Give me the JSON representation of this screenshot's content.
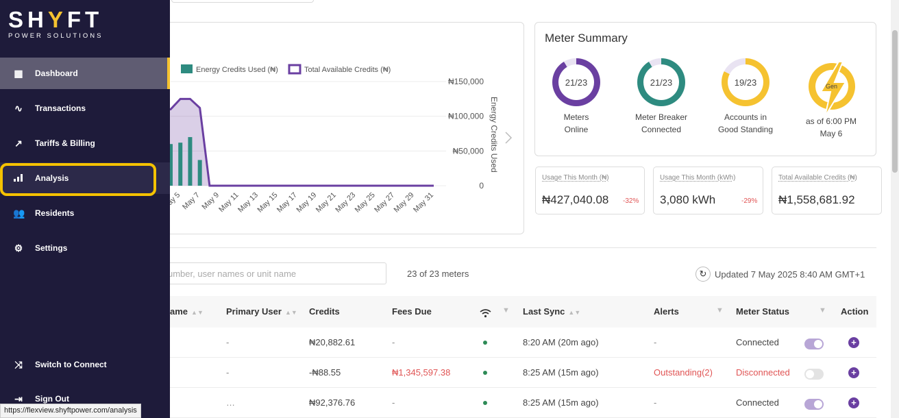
{
  "brand": {
    "name_part1": "SH",
    "name_accent": "Y",
    "name_part2": "FT",
    "subtitle": "POWER SOLUTIONS"
  },
  "sidebar": {
    "items": [
      {
        "label": "Dashboard",
        "icon": "dashboard-grid-icon"
      },
      {
        "label": "Transactions",
        "icon": "pulse-icon"
      },
      {
        "label": "Tariffs & Billing",
        "icon": "trend-up-icon"
      },
      {
        "label": "Analysis",
        "icon": "bar-chart-icon"
      },
      {
        "label": "Residents",
        "icon": "users-icon"
      },
      {
        "label": "Settings",
        "icon": "gear-icon"
      }
    ],
    "bottom": [
      {
        "label": "Switch to Connect",
        "icon": "shuffle-icon"
      },
      {
        "label": "Sign Out",
        "icon": "sign-out-icon"
      }
    ]
  },
  "status_url": "https://flexview.shyftpower.com/analysis",
  "chart_data": {
    "type": "bar",
    "series": [
      {
        "name": "Energy Credits Used (₦)",
        "color": "#2e8b80",
        "type": "bar",
        "x": [
          "May 3",
          "May 4",
          "May 5",
          "May 6",
          "May 7"
        ],
        "values": [
          58000,
          60000,
          62000,
          70000,
          37000
        ]
      },
      {
        "name": "Total Available Credits (₦)",
        "color": "#6a3fa1",
        "type": "area",
        "x": [
          "May 3",
          "May 4",
          "May 5",
          "May 6",
          "May 7",
          "May 8",
          "May 9"
        ],
        "values": [
          110000,
          110000,
          125000,
          125000,
          112000,
          0,
          0
        ]
      }
    ],
    "x_ticks": [
      "May 5",
      "May 7",
      "May 9",
      "May 11",
      "May 13",
      "May 15",
      "May 17",
      "May 19",
      "May 21",
      "May 23",
      "May 25",
      "May 27",
      "May 29",
      "May 31"
    ],
    "y_ticks": [
      "₦150,000",
      "₦100,000",
      "₦50,000",
      "0"
    ],
    "ylabel": "Energy Credits Used",
    "ylim": [
      0,
      150000
    ]
  },
  "summary": {
    "title": "Meter Summary",
    "rings": [
      {
        "value": "21/23",
        "label1": "Meters",
        "label2": "Online",
        "color": "#6a3fa1",
        "fraction": 0.913
      },
      {
        "value": "21/23",
        "label1": "Meter Breaker",
        "label2": "Connected",
        "color": "#2e8b80",
        "fraction": 0.913
      },
      {
        "value": "19/23",
        "label1": "Accounts in",
        "label2": "Good Standing",
        "color": "#f5c230",
        "fraction": 0.826
      }
    ],
    "gen": {
      "badge": "Gen",
      "label1": "as of 6:00 PM",
      "label2": "May 6",
      "icon": "lightning-icon"
    }
  },
  "stats": [
    {
      "label": "Usage This Month (₦)",
      "value": "₦427,040.08",
      "change": "-32%"
    },
    {
      "label": "Usage This Month (kWh)",
      "value": "3,080 kWh",
      "change": "-29%"
    },
    {
      "label": "Total Available Credits (₦)",
      "value": "₦1,558,681.92",
      "change": ""
    }
  ],
  "search": {
    "placeholder": "umber, user names or unit name",
    "count": "23 of 23 meters"
  },
  "updated": "Updated 7 May 2025 8:40 AM GMT+1",
  "table": {
    "headers": {
      "name": "ame",
      "primary_user": "Primary User",
      "credits": "Credits",
      "fees_due": "Fees Due",
      "last_sync": "Last Sync",
      "alerts": "Alerts",
      "meter_status": "Meter Status",
      "action": "Action"
    },
    "rows": [
      {
        "primary_user": "-",
        "credits": "₦20,882.61",
        "fees_due": "-",
        "last_sync": "8:20 AM  (20m ago)",
        "alerts": "-",
        "status": "Connected",
        "on": true
      },
      {
        "primary_user": "-",
        "credits": "-₦88.55",
        "fees_due": "₦1,345,597.38",
        "last_sync": "8:25 AM  (15m ago)",
        "alerts": "Outstanding(2)",
        "status": "Disconnected",
        "on": false
      },
      {
        "primary_user": "…",
        "credits": "₦92,376.76",
        "fees_due": "-",
        "last_sync": "8:25 AM  (15m ago)",
        "alerts": "-",
        "status": "Connected",
        "on": true
      }
    ]
  }
}
